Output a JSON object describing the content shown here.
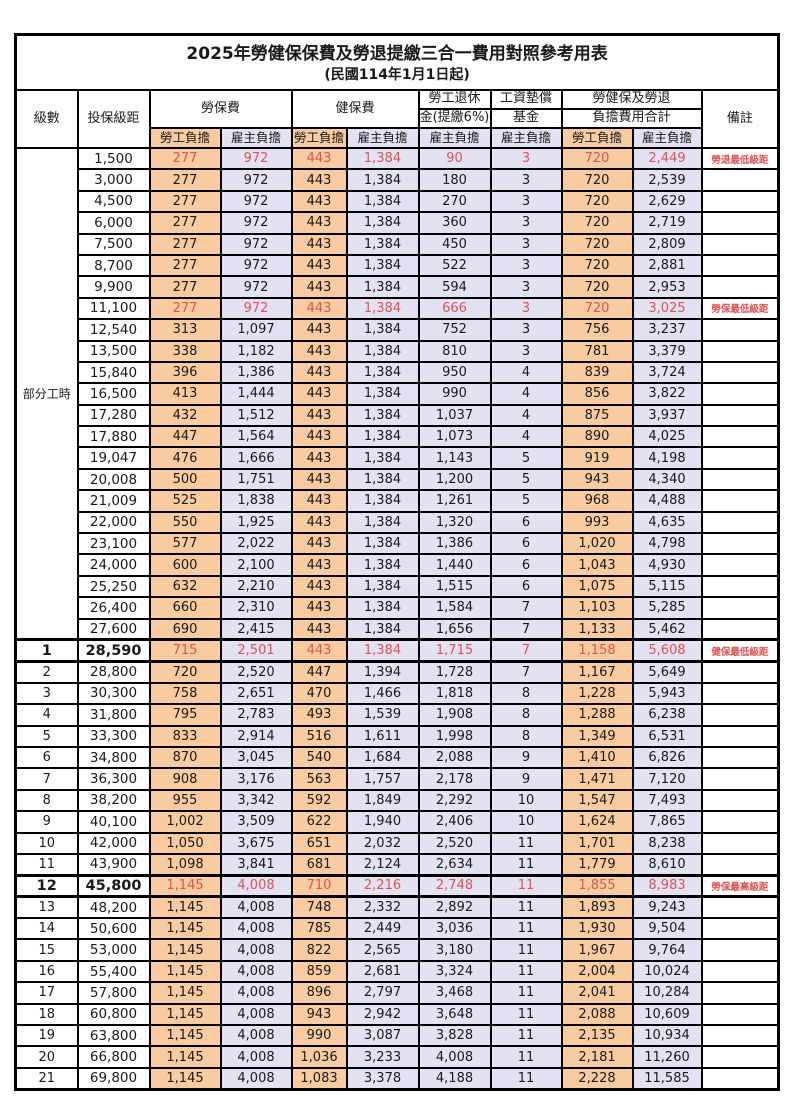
{
  "title": "2025年勞健保保費及勞退提繳三合一費用對照參考用表",
  "subtitle": "(民國114年1月1日起)",
  "header": {
    "level": "級數",
    "salary": "投保級距",
    "labor_fee": "勞保費",
    "health_fee": "健保費",
    "pension_line1": "勞工退休",
    "pension_line2": "金(提繳6%)",
    "wage_fund_line1": "工資墊償",
    "wage_fund_line2": "基金",
    "total_line1": "勞健保及勞退",
    "total_line2": "負擔費用合計",
    "remark": "備註",
    "employee_share": "勞工負擔",
    "employer_share": "雇主負擔"
  },
  "part_time_label": "部分工時",
  "part_time_span": 23,
  "colors": {
    "employee_bg": "#f8cba1",
    "employer_bg": "#e2e2f3",
    "red_text": "#e05252"
  },
  "rows": [
    {
      "level": "",
      "salary": "1,500",
      "cells": [
        "277",
        "972",
        "443",
        "1,384",
        "90",
        "3",
        "720",
        "2,449"
      ],
      "remark": "勞退最低級距",
      "red": true,
      "bold": false
    },
    {
      "level": "",
      "salary": "3,000",
      "cells": [
        "277",
        "972",
        "443",
        "1,384",
        "180",
        "3",
        "720",
        "2,539"
      ],
      "remark": "",
      "red": false,
      "bold": false
    },
    {
      "level": "",
      "salary": "4,500",
      "cells": [
        "277",
        "972",
        "443",
        "1,384",
        "270",
        "3",
        "720",
        "2,629"
      ],
      "remark": "",
      "red": false,
      "bold": false
    },
    {
      "level": "",
      "salary": "6,000",
      "cells": [
        "277",
        "972",
        "443",
        "1,384",
        "360",
        "3",
        "720",
        "2,719"
      ],
      "remark": "",
      "red": false,
      "bold": false
    },
    {
      "level": "",
      "salary": "7,500",
      "cells": [
        "277",
        "972",
        "443",
        "1,384",
        "450",
        "3",
        "720",
        "2,809"
      ],
      "remark": "",
      "red": false,
      "bold": false
    },
    {
      "level": "",
      "salary": "8,700",
      "cells": [
        "277",
        "972",
        "443",
        "1,384",
        "522",
        "3",
        "720",
        "2,881"
      ],
      "remark": "",
      "red": false,
      "bold": false
    },
    {
      "level": "",
      "salary": "9,900",
      "cells": [
        "277",
        "972",
        "443",
        "1,384",
        "594",
        "3",
        "720",
        "2,953"
      ],
      "remark": "",
      "red": false,
      "bold": false
    },
    {
      "level": "",
      "salary": "11,100",
      "cells": [
        "277",
        "972",
        "443",
        "1,384",
        "666",
        "3",
        "720",
        "3,025"
      ],
      "remark": "勞保最低級距",
      "red": true,
      "bold": false
    },
    {
      "level": "",
      "salary": "12,540",
      "cells": [
        "313",
        "1,097",
        "443",
        "1,384",
        "752",
        "3",
        "756",
        "3,237"
      ],
      "remark": "",
      "red": false,
      "bold": false
    },
    {
      "level": "",
      "salary": "13,500",
      "cells": [
        "338",
        "1,182",
        "443",
        "1,384",
        "810",
        "3",
        "781",
        "3,379"
      ],
      "remark": "",
      "red": false,
      "bold": false
    },
    {
      "level": "",
      "salary": "15,840",
      "cells": [
        "396",
        "1,386",
        "443",
        "1,384",
        "950",
        "4",
        "839",
        "3,724"
      ],
      "remark": "",
      "red": false,
      "bold": false
    },
    {
      "level": "",
      "salary": "16,500",
      "cells": [
        "413",
        "1,444",
        "443",
        "1,384",
        "990",
        "4",
        "856",
        "3,822"
      ],
      "remark": "",
      "red": false,
      "bold": false
    },
    {
      "level": "",
      "salary": "17,280",
      "cells": [
        "432",
        "1,512",
        "443",
        "1,384",
        "1,037",
        "4",
        "875",
        "3,937"
      ],
      "remark": "",
      "red": false,
      "bold": false
    },
    {
      "level": "",
      "salary": "17,880",
      "cells": [
        "447",
        "1,564",
        "443",
        "1,384",
        "1,073",
        "4",
        "890",
        "4,025"
      ],
      "remark": "",
      "red": false,
      "bold": false
    },
    {
      "level": "",
      "salary": "19,047",
      "cells": [
        "476",
        "1,666",
        "443",
        "1,384",
        "1,143",
        "5",
        "919",
        "4,198"
      ],
      "remark": "",
      "red": false,
      "bold": false
    },
    {
      "level": "",
      "salary": "20,008",
      "cells": [
        "500",
        "1,751",
        "443",
        "1,384",
        "1,200",
        "5",
        "943",
        "4,340"
      ],
      "remark": "",
      "red": false,
      "bold": false
    },
    {
      "level": "",
      "salary": "21,009",
      "cells": [
        "525",
        "1,838",
        "443",
        "1,384",
        "1,261",
        "5",
        "968",
        "4,488"
      ],
      "remark": "",
      "red": false,
      "bold": false
    },
    {
      "level": "",
      "salary": "22,000",
      "cells": [
        "550",
        "1,925",
        "443",
        "1,384",
        "1,320",
        "6",
        "993",
        "4,635"
      ],
      "remark": "",
      "red": false,
      "bold": false
    },
    {
      "level": "",
      "salary": "23,100",
      "cells": [
        "577",
        "2,022",
        "443",
        "1,384",
        "1,386",
        "6",
        "1,020",
        "4,798"
      ],
      "remark": "",
      "red": false,
      "bold": false
    },
    {
      "level": "",
      "salary": "24,000",
      "cells": [
        "600",
        "2,100",
        "443",
        "1,384",
        "1,440",
        "6",
        "1,043",
        "4,930"
      ],
      "remark": "",
      "red": false,
      "bold": false
    },
    {
      "level": "",
      "salary": "25,250",
      "cells": [
        "632",
        "2,210",
        "443",
        "1,384",
        "1,515",
        "6",
        "1,075",
        "5,115"
      ],
      "remark": "",
      "red": false,
      "bold": false
    },
    {
      "level": "",
      "salary": "26,400",
      "cells": [
        "660",
        "2,310",
        "443",
        "1,384",
        "1,584",
        "7",
        "1,103",
        "5,285"
      ],
      "remark": "",
      "red": false,
      "bold": false
    },
    {
      "level": "",
      "salary": "27,600",
      "cells": [
        "690",
        "2,415",
        "443",
        "1,384",
        "1,656",
        "7",
        "1,133",
        "5,462"
      ],
      "remark": "",
      "red": false,
      "bold": false
    },
    {
      "level": "1",
      "salary": "28,590",
      "cells": [
        "715",
        "2,501",
        "443",
        "1,384",
        "1,715",
        "7",
        "1,158",
        "5,608"
      ],
      "remark": "健保最低級距",
      "red": true,
      "bold": true
    },
    {
      "level": "2",
      "salary": "28,800",
      "cells": [
        "720",
        "2,520",
        "447",
        "1,394",
        "1,728",
        "7",
        "1,167",
        "5,649"
      ],
      "remark": "",
      "red": false,
      "bold": false
    },
    {
      "level": "3",
      "salary": "30,300",
      "cells": [
        "758",
        "2,651",
        "470",
        "1,466",
        "1,818",
        "8",
        "1,228",
        "5,943"
      ],
      "remark": "",
      "red": false,
      "bold": false
    },
    {
      "level": "4",
      "salary": "31,800",
      "cells": [
        "795",
        "2,783",
        "493",
        "1,539",
        "1,908",
        "8",
        "1,288",
        "6,238"
      ],
      "remark": "",
      "red": false,
      "bold": false
    },
    {
      "level": "5",
      "salary": "33,300",
      "cells": [
        "833",
        "2,914",
        "516",
        "1,611",
        "1,998",
        "8",
        "1,349",
        "6,531"
      ],
      "remark": "",
      "red": false,
      "bold": false
    },
    {
      "level": "6",
      "salary": "34,800",
      "cells": [
        "870",
        "3,045",
        "540",
        "1,684",
        "2,088",
        "9",
        "1,410",
        "6,826"
      ],
      "remark": "",
      "red": false,
      "bold": false
    },
    {
      "level": "7",
      "salary": "36,300",
      "cells": [
        "908",
        "3,176",
        "563",
        "1,757",
        "2,178",
        "9",
        "1,471",
        "7,120"
      ],
      "remark": "",
      "red": false,
      "bold": false
    },
    {
      "level": "8",
      "salary": "38,200",
      "cells": [
        "955",
        "3,342",
        "592",
        "1,849",
        "2,292",
        "10",
        "1,547",
        "7,493"
      ],
      "remark": "",
      "red": false,
      "bold": false
    },
    {
      "level": "9",
      "salary": "40,100",
      "cells": [
        "1,002",
        "3,509",
        "622",
        "1,940",
        "2,406",
        "10",
        "1,624",
        "7,865"
      ],
      "remark": "",
      "red": false,
      "bold": false
    },
    {
      "level": "10",
      "salary": "42,000",
      "cells": [
        "1,050",
        "3,675",
        "651",
        "2,032",
        "2,520",
        "11",
        "1,701",
        "8,238"
      ],
      "remark": "",
      "red": false,
      "bold": false
    },
    {
      "level": "11",
      "salary": "43,900",
      "cells": [
        "1,098",
        "3,841",
        "681",
        "2,124",
        "2,634",
        "11",
        "1,779",
        "8,610"
      ],
      "remark": "",
      "red": false,
      "bold": false
    },
    {
      "level": "12",
      "salary": "45,800",
      "cells": [
        "1,145",
        "4,008",
        "710",
        "2,216",
        "2,748",
        "11",
        "1,855",
        "8,983"
      ],
      "remark": "勞保最高級距",
      "red": true,
      "bold": true
    },
    {
      "level": "13",
      "salary": "48,200",
      "cells": [
        "1,145",
        "4,008",
        "748",
        "2,332",
        "2,892",
        "11",
        "1,893",
        "9,243"
      ],
      "remark": "",
      "red": false,
      "bold": false
    },
    {
      "level": "14",
      "salary": "50,600",
      "cells": [
        "1,145",
        "4,008",
        "785",
        "2,449",
        "3,036",
        "11",
        "1,930",
        "9,504"
      ],
      "remark": "",
      "red": false,
      "bold": false
    },
    {
      "level": "15",
      "salary": "53,000",
      "cells": [
        "1,145",
        "4,008",
        "822",
        "2,565",
        "3,180",
        "11",
        "1,967",
        "9,764"
      ],
      "remark": "",
      "red": false,
      "bold": false
    },
    {
      "level": "16",
      "salary": "55,400",
      "cells": [
        "1,145",
        "4,008",
        "859",
        "2,681",
        "3,324",
        "11",
        "2,004",
        "10,024"
      ],
      "remark": "",
      "red": false,
      "bold": false
    },
    {
      "level": "17",
      "salary": "57,800",
      "cells": [
        "1,145",
        "4,008",
        "896",
        "2,797",
        "3,468",
        "11",
        "2,041",
        "10,284"
      ],
      "remark": "",
      "red": false,
      "bold": false
    },
    {
      "level": "18",
      "salary": "60,800",
      "cells": [
        "1,145",
        "4,008",
        "943",
        "2,942",
        "3,648",
        "11",
        "2,088",
        "10,609"
      ],
      "remark": "",
      "red": false,
      "bold": false
    },
    {
      "level": "19",
      "salary": "63,800",
      "cells": [
        "1,145",
        "4,008",
        "990",
        "3,087",
        "3,828",
        "11",
        "2,135",
        "10,934"
      ],
      "remark": "",
      "red": false,
      "bold": false
    },
    {
      "level": "20",
      "salary": "66,800",
      "cells": [
        "1,145",
        "4,008",
        "1,036",
        "3,233",
        "4,008",
        "11",
        "2,181",
        "11,260"
      ],
      "remark": "",
      "red": false,
      "bold": false
    },
    {
      "level": "21",
      "salary": "69,800",
      "cells": [
        "1,145",
        "4,008",
        "1,083",
        "3,378",
        "4,188",
        "11",
        "2,228",
        "11,585"
      ],
      "remark": "",
      "red": false,
      "bold": false
    }
  ]
}
